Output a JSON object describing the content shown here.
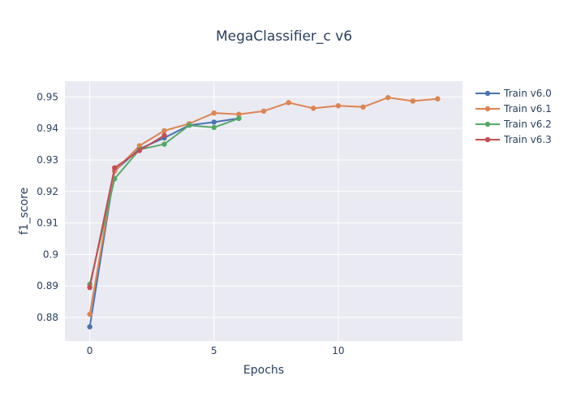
{
  "chart_data": {
    "type": "line",
    "title": "MegaClassifier_c v6",
    "xlabel": "Epochs",
    "ylabel": "f1_score",
    "xlim": [
      -1,
      15
    ],
    "ylim": [
      0.8725,
      0.955
    ],
    "x_ticks": [
      0,
      5,
      10
    ],
    "y_ticks": [
      0.88,
      0.89,
      0.9,
      0.91,
      0.92,
      0.93,
      0.94,
      0.95
    ],
    "x_tick_labels": [
      "0",
      "5",
      "10"
    ],
    "y_tick_labels": [
      "0.88",
      "0.89",
      "0.9",
      "0.91",
      "0.92",
      "0.93",
      "0.94",
      "0.95"
    ],
    "grid": true,
    "legend_position": "top-right",
    "series": [
      {
        "name": "Train v6.0",
        "color": "#4c72b0",
        "x": [
          0,
          1,
          2,
          3,
          4,
          5,
          6
        ],
        "y": [
          0.877,
          0.9265,
          0.9335,
          0.937,
          0.941,
          0.942,
          0.9432
        ]
      },
      {
        "name": "Train v6.1",
        "color": "#dd8452",
        "x": [
          0,
          1,
          2,
          3,
          4,
          5,
          6,
          7,
          8,
          9,
          10,
          11,
          12,
          13,
          14
        ],
        "y": [
          0.881,
          0.9265,
          0.9345,
          0.9393,
          0.9415,
          0.9449,
          0.9445,
          0.9455,
          0.9482,
          0.9464,
          0.9472,
          0.9468,
          0.9498,
          0.9487,
          0.9494
        ]
      },
      {
        "name": "Train v6.2",
        "color": "#55a868",
        "x": [
          0,
          1,
          2,
          3,
          4,
          5,
          6
        ],
        "y": [
          0.8905,
          0.924,
          0.9333,
          0.935,
          0.941,
          0.9403,
          0.9432
        ]
      },
      {
        "name": "Train v6.3",
        "color": "#c44e52",
        "x": [
          0,
          1,
          2,
          3
        ],
        "y": [
          0.8895,
          0.9275,
          0.933,
          0.9378
        ]
      }
    ]
  }
}
